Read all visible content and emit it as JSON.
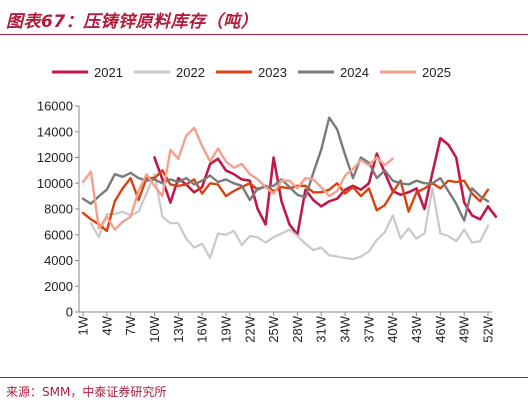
{
  "header": {
    "title": "图表67：压铸锌原料库存（吨）"
  },
  "footer": {
    "source": "来源：SMM，中泰证券研究所"
  },
  "chart_data": {
    "type": "line",
    "title": "图表67：压铸锌原料库存（吨）",
    "xlabel": "",
    "ylabel": "",
    "ylim": [
      0,
      16000
    ],
    "yticks": [
      "0",
      "2000",
      "4000",
      "6000",
      "8000",
      "10000",
      "12000",
      "14000",
      "16000"
    ],
    "weeks": [
      1,
      52
    ],
    "xticks": [
      "1W",
      "4W",
      "7W",
      "10W",
      "13W",
      "16W",
      "19W",
      "22W",
      "25W",
      "28W",
      "31W",
      "34W",
      "37W",
      "40W",
      "43W",
      "46W",
      "49W",
      "52W"
    ],
    "grid": false,
    "legend_position": "top",
    "series": [
      {
        "name": "2021",
        "color": "#c0184a",
        "width": 2.6,
        "x": [
          10,
          11,
          12,
          13,
          14,
          15,
          16,
          17,
          18,
          19,
          20,
          21,
          22,
          23,
          24,
          25,
          26,
          27,
          28,
          29,
          30,
          31,
          32,
          33,
          34,
          35,
          36,
          37,
          38,
          39,
          40,
          41,
          42,
          43,
          44,
          45,
          46,
          47,
          48,
          49,
          50,
          51,
          52,
          53
        ],
        "values": [
          12000,
          10300,
          8500,
          10400,
          9900,
          9300,
          9700,
          11500,
          11900,
          11000,
          10700,
          10300,
          10200,
          8000,
          6800,
          12000,
          8600,
          6800,
          6000,
          9500,
          8700,
          8200,
          8600,
          8800,
          9500,
          9800,
          9500,
          10000,
          12300,
          10800,
          9400,
          9100,
          9300,
          9600,
          8000,
          10800,
          13500,
          13000,
          12000,
          8500,
          7500,
          7200,
          8200,
          7400
        ]
      },
      {
        "name": "2022",
        "color": "#c9c9c9",
        "width": 2.2,
        "x": [
          2,
          3,
          4,
          5,
          6,
          7,
          8,
          9,
          10,
          11,
          12,
          13,
          14,
          15,
          16,
          17,
          18,
          19,
          20,
          21,
          22,
          23,
          24,
          25,
          26,
          27,
          28,
          29,
          30,
          31,
          32,
          33,
          34,
          35,
          36,
          37,
          38,
          39,
          40,
          41,
          42,
          43,
          44,
          45,
          46,
          47,
          48,
          49,
          50,
          51,
          52
        ],
        "values": [
          6900,
          5800,
          7600,
          7600,
          7800,
          7500,
          7800,
          9200,
          10700,
          7400,
          6900,
          6900,
          5700,
          5000,
          5300,
          4200,
          6100,
          6000,
          6300,
          5200,
          5900,
          5800,
          5400,
          5800,
          6100,
          6400,
          5900,
          5300,
          4800,
          5000,
          4400,
          4300,
          4200,
          4100,
          4300,
          4700,
          5600,
          6200,
          7500,
          5700,
          6500,
          5700,
          6100,
          9600,
          6100,
          5900,
          5500,
          6400,
          5400,
          5500,
          6700
        ]
      },
      {
        "name": "2023",
        "color": "#d9420f",
        "width": 2.4,
        "x": [
          1,
          2,
          3,
          4,
          5,
          6,
          7,
          8,
          9,
          10,
          11,
          12,
          13,
          14,
          15,
          16,
          17,
          18,
          19,
          20,
          21,
          22,
          23,
          24,
          25,
          26,
          27,
          28,
          29,
          30,
          31,
          32,
          33,
          34,
          35,
          36,
          37,
          38,
          39,
          40,
          41,
          42,
          43,
          44,
          45,
          46,
          47,
          48,
          49,
          50,
          51,
          52
        ],
        "values": [
          7700,
          7200,
          6800,
          6300,
          8600,
          9600,
          10400,
          8700,
          10400,
          10400,
          11000,
          9900,
          9800,
          9900,
          10300,
          9200,
          10000,
          9900,
          9000,
          9400,
          9700,
          10000,
          9500,
          9800,
          9400,
          9700,
          9600,
          9800,
          9800,
          9300,
          9300,
          9500,
          10000,
          9200,
          9700,
          9000,
          9600,
          7900,
          8300,
          9300,
          10200,
          7800,
          9300,
          9600,
          10000,
          9600,
          10200,
          10100,
          10200,
          9200,
          8600,
          9500
        ]
      },
      {
        "name": "2024",
        "color": "#7a7a7a",
        "width": 2.4,
        "x": [
          1,
          2,
          3,
          4,
          5,
          6,
          7,
          8,
          9,
          10,
          11,
          12,
          13,
          14,
          15,
          16,
          17,
          18,
          19,
          20,
          21,
          22,
          23,
          24,
          25,
          26,
          27,
          28,
          29,
          30,
          31,
          32,
          33,
          34,
          35,
          36,
          37,
          38,
          39,
          40,
          41,
          42,
          43,
          44,
          45,
          46,
          47,
          48,
          49,
          50,
          51,
          52
        ],
        "values": [
          8800,
          8400,
          9000,
          9500,
          10700,
          10500,
          10800,
          10400,
          10200,
          10300,
          10000,
          10300,
          10100,
          10400,
          9900,
          10200,
          10600,
          10100,
          10300,
          10000,
          9800,
          8700,
          9600,
          9700,
          9800,
          10300,
          9700,
          9100,
          8900,
          10800,
          12600,
          15100,
          14200,
          12200,
          10400,
          12000,
          11600,
          10400,
          11000,
          10200,
          10000,
          9900,
          10200,
          10000,
          10000,
          10400,
          9400,
          8400,
          7100,
          9600,
          9000,
          8600
        ]
      },
      {
        "name": "2025",
        "color": "#f5a08c",
        "width": 2.4,
        "x": [
          1,
          2,
          3,
          4,
          5,
          6,
          7,
          8,
          9,
          10,
          11,
          12,
          13,
          14,
          15,
          16,
          17,
          18,
          19,
          20,
          21,
          22,
          23,
          24,
          25,
          26,
          27,
          28,
          29,
          30,
          31,
          32,
          33,
          34,
          35,
          36,
          37,
          38,
          39,
          40
        ],
        "values": [
          10100,
          10900,
          6500,
          7400,
          6400,
          7000,
          7400,
          9400,
          10700,
          9800,
          9000,
          12600,
          11900,
          13700,
          14300,
          12900,
          11700,
          12700,
          11700,
          11200,
          11500,
          10700,
          10300,
          9700,
          9200,
          10200,
          10200,
          9600,
          10400,
          10300,
          9700,
          9000,
          9400,
          10600,
          11100,
          11800,
          11400,
          12000,
          11400,
          11900
        ]
      }
    ]
  }
}
